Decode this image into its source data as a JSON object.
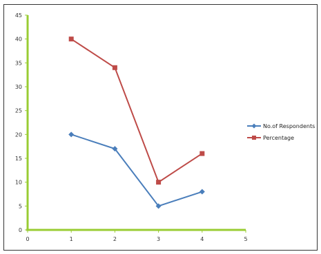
{
  "chart_data": {
    "type": "line",
    "title": "",
    "xlabel": "",
    "ylabel": "",
    "x": [
      1,
      2,
      3,
      4
    ],
    "xlim": [
      0,
      5
    ],
    "ylim": [
      0,
      45
    ],
    "xticks": [
      "0",
      "1",
      "2",
      "3",
      "4",
      "5"
    ],
    "yticks": [
      "0",
      "5",
      "10",
      "15",
      "20",
      "25",
      "30",
      "35",
      "40",
      "45"
    ],
    "grid": false,
    "legend_position": "right",
    "axis_color": "#99CC33",
    "series": [
      {
        "name": "No.of Respondents",
        "values": [
          20,
          17,
          5,
          8
        ],
        "color": "#4A7EBB",
        "marker": "diamond"
      },
      {
        "name": "Percentage",
        "values": [
          40,
          34,
          10,
          16
        ],
        "color": "#BE4B48",
        "marker": "square"
      }
    ]
  }
}
